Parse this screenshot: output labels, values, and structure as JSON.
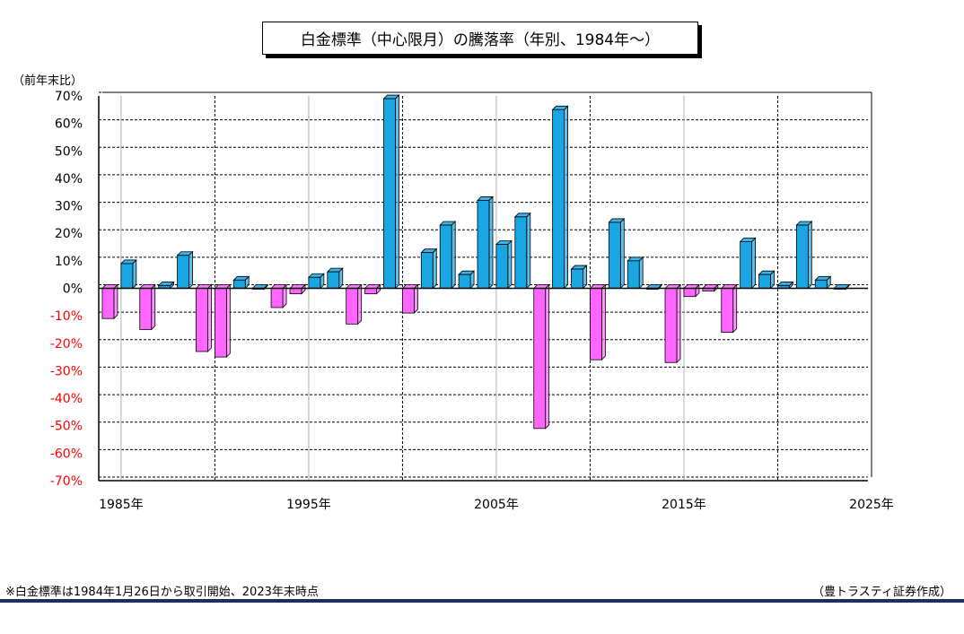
{
  "chart_data": {
    "type": "bar",
    "title": "白金標準（中心限月）の騰落率（年別、1984年～）",
    "ylabel": "（前年末比）",
    "ylim": [
      -70,
      70
    ],
    "yticks": [
      "70%",
      "60%",
      "50%",
      "40%",
      "30%",
      "20%",
      "10%",
      "0%",
      "-10%",
      "-20%",
      "-30%",
      "-40%",
      "-50%",
      "-60%",
      "-70%"
    ],
    "xticks": [
      "1985年",
      "1995年",
      "2005年",
      "2015年",
      "2025年"
    ],
    "xlim": [
      1984,
      2025
    ],
    "grid": true,
    "categories": [
      1984,
      1985,
      1986,
      1987,
      1988,
      1989,
      1990,
      1991,
      1992,
      1993,
      1994,
      1995,
      1996,
      1997,
      1998,
      1999,
      2000,
      2001,
      2002,
      2003,
      2004,
      2005,
      2006,
      2007,
      2008,
      2009,
      2010,
      2011,
      2012,
      2013,
      2014,
      2015,
      2016,
      2017,
      2018,
      2019,
      2020,
      2021,
      2022,
      2023
    ],
    "values": [
      -11,
      9,
      -15,
      1,
      12,
      -23,
      -25,
      3,
      0,
      -7,
      -2,
      4,
      6,
      -13,
      -2,
      69,
      -9,
      13,
      23,
      5,
      32,
      16,
      26,
      -51,
      65,
      7,
      -26,
      24,
      10,
      0,
      -27,
      -3,
      -1,
      -16,
      17,
      5,
      1,
      23,
      3,
      0
    ],
    "colors": {
      "positive": "#1aa6e3",
      "negative": "#ff66ff"
    }
  },
  "footer": {
    "note": "※白金標準は1984年1月26日から取引開始、2023年末時点",
    "credit": "（豊トラスティ証券作成）"
  }
}
